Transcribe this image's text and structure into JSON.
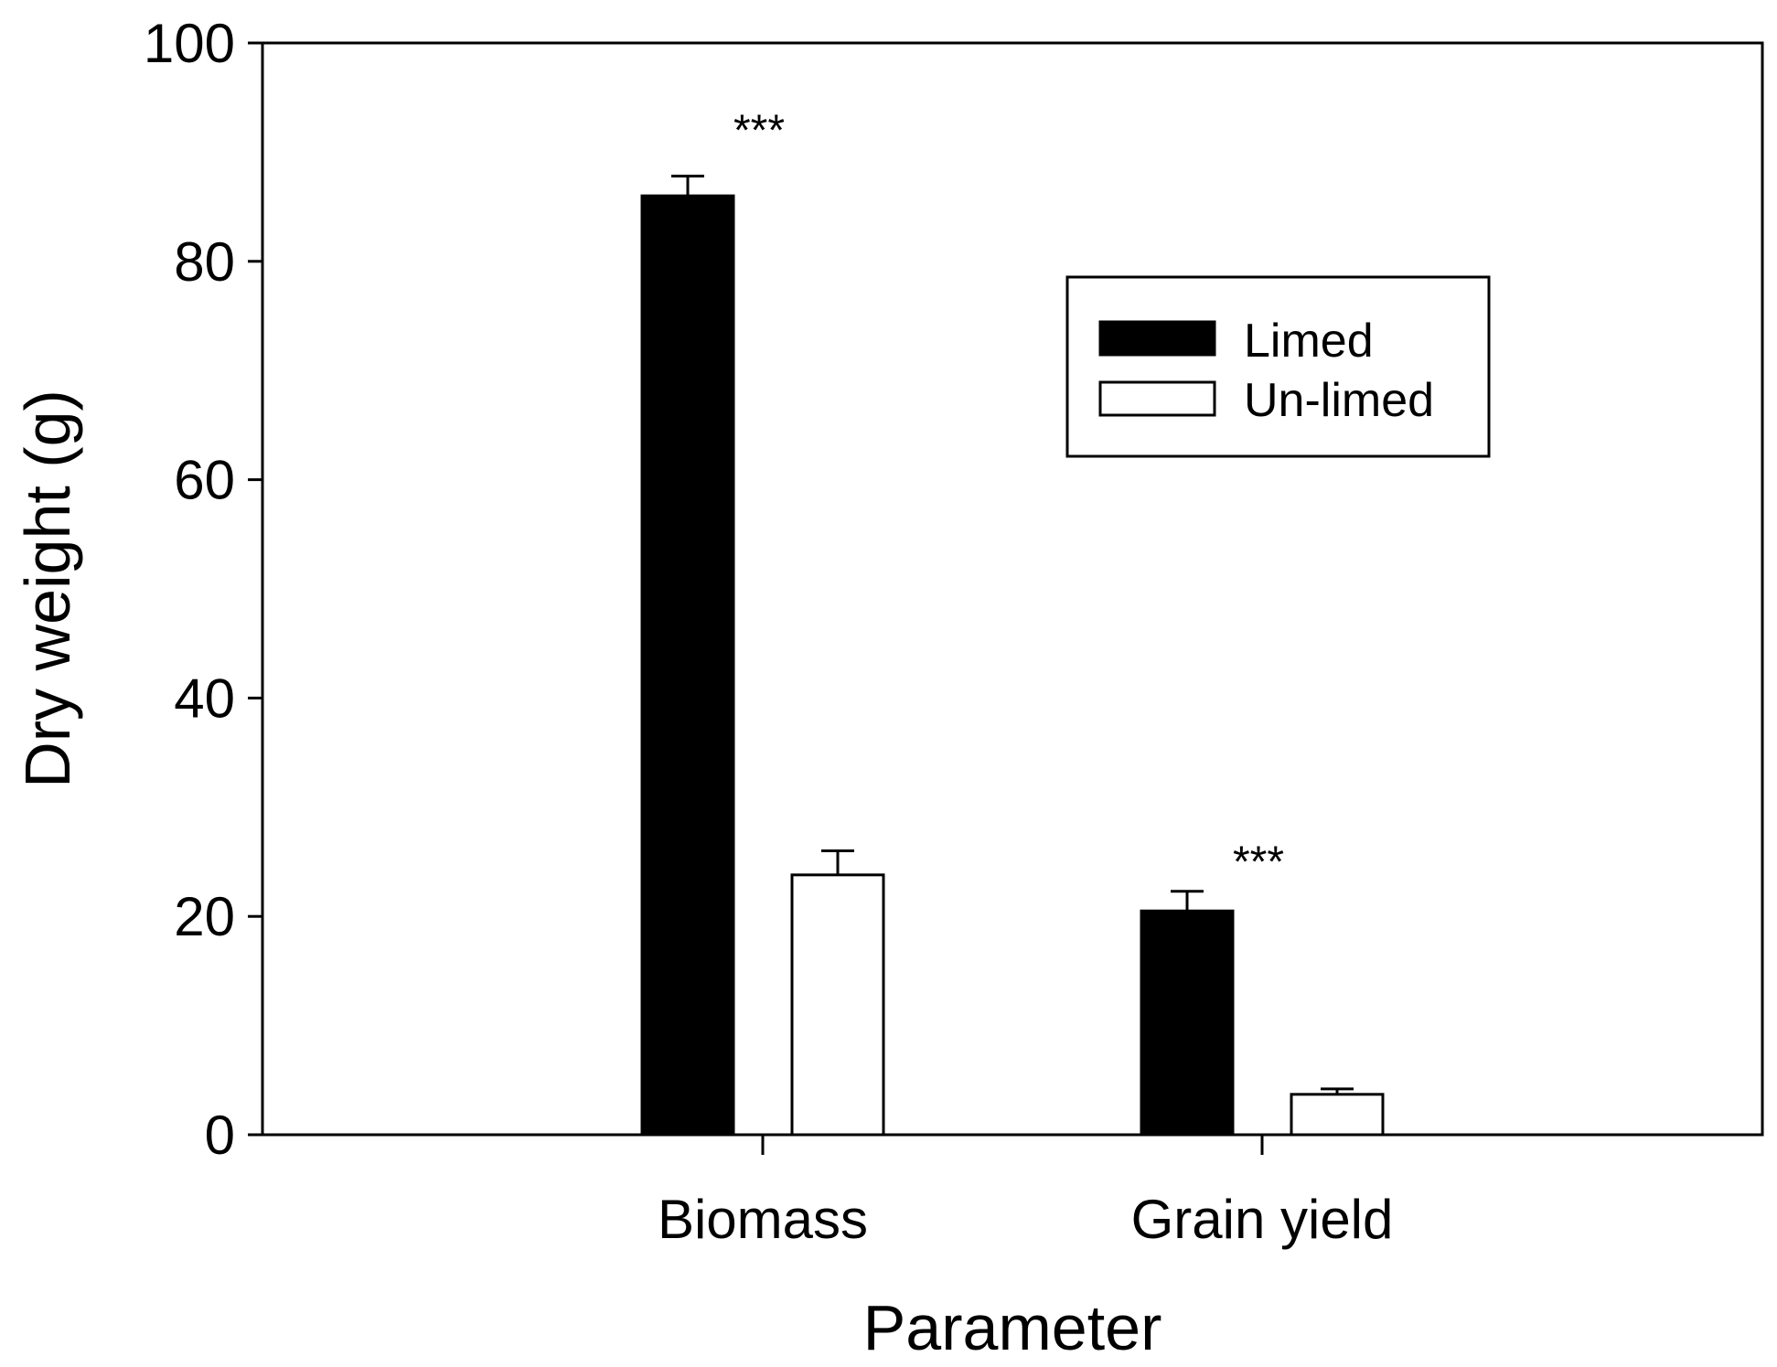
{
  "chart_data": {
    "type": "bar",
    "title": "",
    "xlabel": "Parameter",
    "ylabel": "Dry weight (g)",
    "ylim": [
      0,
      100
    ],
    "yticks": [
      0,
      20,
      40,
      60,
      80,
      100
    ],
    "categories": [
      "Biomass",
      "Grain yield"
    ],
    "series": [
      {
        "name": "Limed",
        "values": [
          86,
          20.5
        ],
        "errors": [
          1.8,
          1.8
        ],
        "fill": "#000000"
      },
      {
        "name": "Un-limed",
        "values": [
          23.8,
          3.7
        ],
        "errors": [
          2.2,
          0.5
        ],
        "fill": "#ffffff"
      }
    ],
    "annotations": [
      {
        "category": "Biomass",
        "text": "***",
        "y": 93
      },
      {
        "category": "Grain yield",
        "text": "***",
        "y": 26
      }
    ],
    "legend": {
      "position": "top-right"
    },
    "grid": false
  }
}
